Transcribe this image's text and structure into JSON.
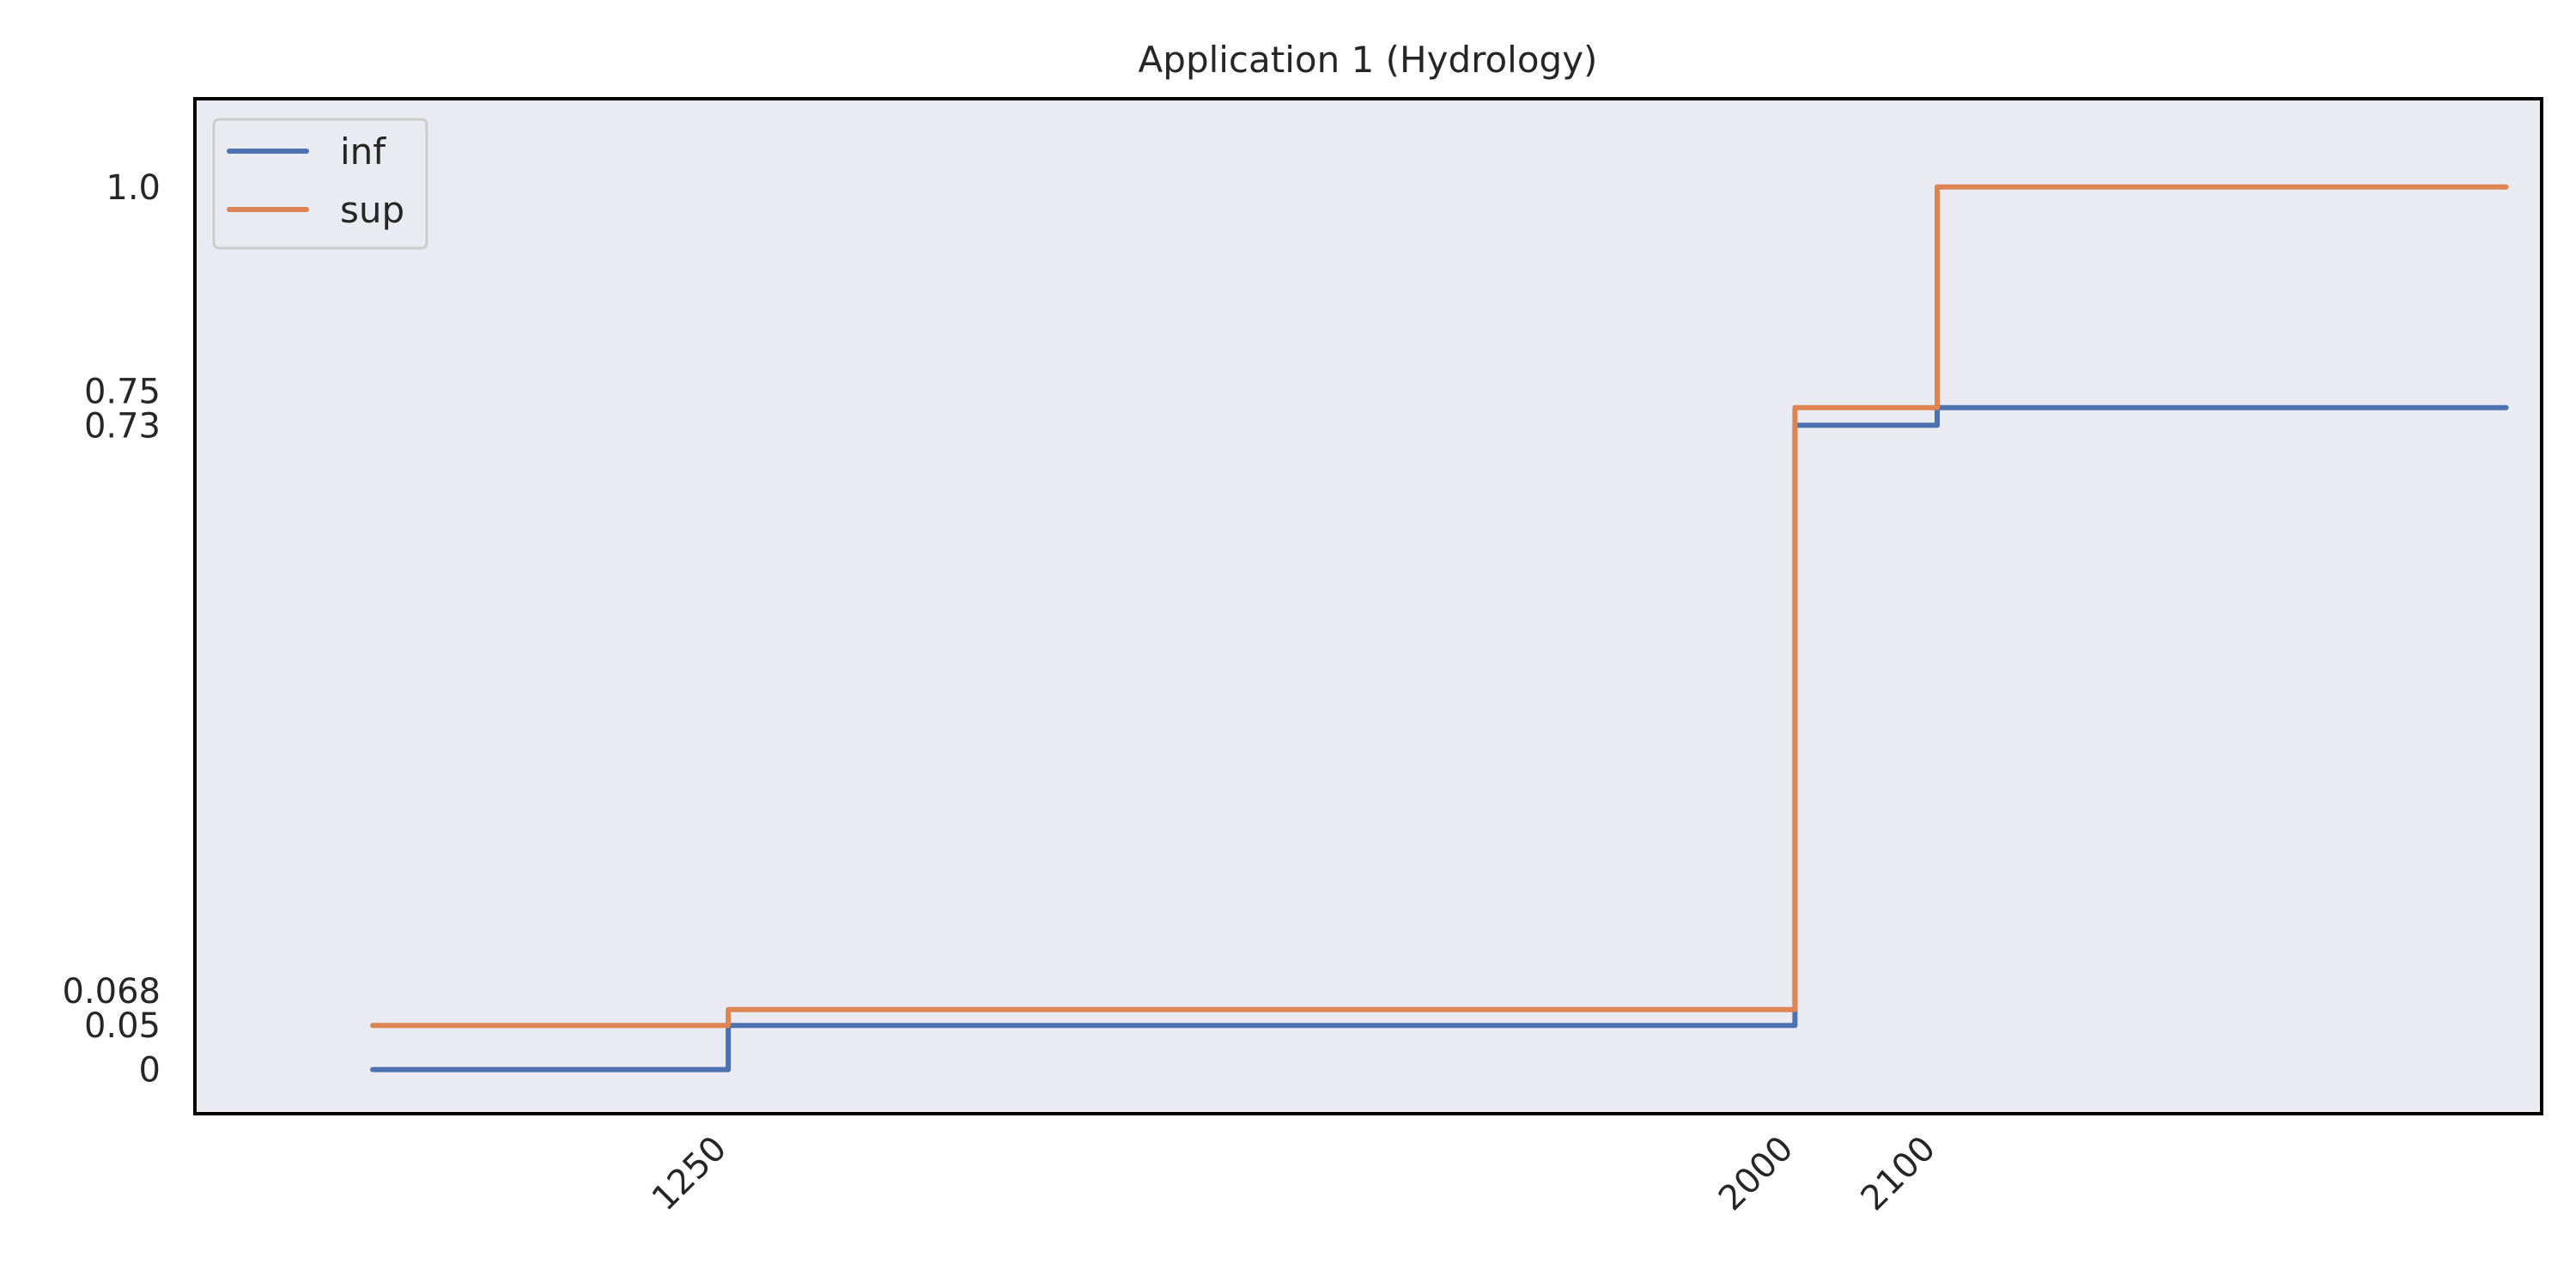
{
  "chart_data": {
    "type": "line",
    "title": "Application 1 (Hydrology)",
    "xlabel": "",
    "ylabel": "",
    "drawstyle": "steps-post",
    "x_ticks": [
      1250,
      2000,
      2100
    ],
    "x_tick_labels": [
      "1250",
      "2000",
      "2100"
    ],
    "y_ticks": [
      0,
      0.05,
      0.068,
      0.73,
      0.75,
      1.0
    ],
    "y_tick_labels": [
      "0",
      "0.05",
      "0.068",
      "0.73",
      "0.75",
      "1.0"
    ],
    "xlim": [
      875,
      2525
    ],
    "ylim": [
      -0.05,
      1.1
    ],
    "grid": false,
    "background": "#eaeaf2",
    "legend_position": "top-left",
    "series": [
      {
        "name": "inf",
        "color": "#4c72b0",
        "x": [
          1000,
          1250,
          2000,
          2100,
          2500
        ],
        "y": [
          0,
          0.05,
          0.73,
          0.75,
          0.75
        ]
      },
      {
        "name": "sup",
        "color": "#dd8452",
        "x": [
          1000,
          1250,
          2000,
          2100,
          2500
        ],
        "y": [
          0.05,
          0.068,
          0.75,
          1.0,
          1.0
        ]
      }
    ]
  }
}
